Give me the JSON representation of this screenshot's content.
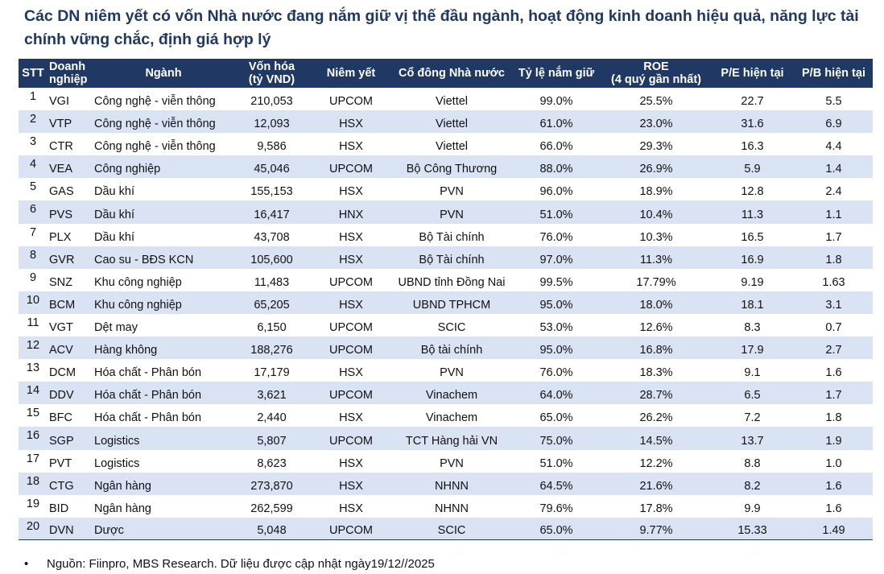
{
  "title": "Các DN niêm yết có vốn Nhà nước đang nắm giữ vị thế đầu ngành, hoạt động kinh doanh hiệu quả, năng lực tài chính vững chắc, định giá hợp lý",
  "table": {
    "headers": {
      "stt": "STT",
      "company_line1": "Doanh",
      "company_line2": "nghiệp",
      "industry": "Ngành",
      "capital_line1": "Vốn hóa",
      "capital_line2": "(tỷ VND)",
      "listing": "Niêm yết",
      "shareholder": "Cổ đông Nhà nước",
      "ownership": "Tỷ lệ nắm giữ",
      "roe_line1": "ROE",
      "roe_line2": "(4 quý gần nhất)",
      "pe": "P/E hiện tại",
      "pb": "P/B hiện tại"
    },
    "rows": [
      {
        "stt": "1",
        "company": "VGI",
        "industry": "Công nghệ - viễn thông",
        "capital": "210,053",
        "listing": "UPCOM",
        "shareholder": "Viettel",
        "ownership": "99.0%",
        "roe": "25.5%",
        "pe": "22.7",
        "pb": "5.5"
      },
      {
        "stt": "2",
        "company": "VTP",
        "industry": "Công nghệ - viễn thông",
        "capital": "12,093",
        "listing": "HSX",
        "shareholder": "Viettel",
        "ownership": "61.0%",
        "roe": "23.0%",
        "pe": "31.6",
        "pb": "6.9"
      },
      {
        "stt": "3",
        "company": "CTR",
        "industry": "Công nghệ - viễn thông",
        "capital": "9,586",
        "listing": "HSX",
        "shareholder": "Viettel",
        "ownership": "66.0%",
        "roe": "29.3%",
        "pe": "16.3",
        "pb": "4.4"
      },
      {
        "stt": "4",
        "company": "VEA",
        "industry": "Công nghiệp",
        "capital": "45,046",
        "listing": "UPCOM",
        "shareholder": "Bộ Công Thương",
        "ownership": "88.0%",
        "roe": "26.9%",
        "pe": "5.9",
        "pb": "1.4"
      },
      {
        "stt": "5",
        "company": "GAS",
        "industry": "Dầu khí",
        "capital": "155,153",
        "listing": "HSX",
        "shareholder": "PVN",
        "ownership": "96.0%",
        "roe": "18.9%",
        "pe": "12.8",
        "pb": "2.4"
      },
      {
        "stt": "6",
        "company": "PVS",
        "industry": "Dầu khí",
        "capital": "16,417",
        "listing": "HNX",
        "shareholder": "PVN",
        "ownership": "51.0%",
        "roe": "10.4%",
        "pe": "11.3",
        "pb": "1.1"
      },
      {
        "stt": "7",
        "company": "PLX",
        "industry": "Dầu khí",
        "capital": "43,708",
        "listing": "HSX",
        "shareholder": "Bộ Tài chính",
        "ownership": "76.0%",
        "roe": "10.3%",
        "pe": "16.5",
        "pb": "1.7"
      },
      {
        "stt": "8",
        "company": "GVR",
        "industry": "Cao su - BĐS KCN",
        "capital": "105,600",
        "listing": "HSX",
        "shareholder": "Bộ Tài chính",
        "ownership": "97.0%",
        "roe": "11.3%",
        "pe": "16.9",
        "pb": "1.8"
      },
      {
        "stt": "9",
        "company": "SNZ",
        "industry": "Khu công nghiệp",
        "capital": "11,483",
        "listing": "UPCOM",
        "shareholder": "UBND tỉnh Đồng Nai",
        "ownership": "99.5%",
        "roe": "17.79%",
        "pe": "9.19",
        "pb": "1.63"
      },
      {
        "stt": "10",
        "company": "BCM",
        "industry": "Khu công nghiệp",
        "capital": "65,205",
        "listing": "HSX",
        "shareholder": "UBND TPHCM",
        "ownership": "95.0%",
        "roe": "18.0%",
        "pe": "18.1",
        "pb": "3.1"
      },
      {
        "stt": "11",
        "company": "VGT",
        "industry": "Dệt may",
        "capital": "6,150",
        "listing": "UPCOM",
        "shareholder": "SCIC",
        "ownership": "53.0%",
        "roe": "12.6%",
        "pe": "8.3",
        "pb": "0.7"
      },
      {
        "stt": "12",
        "company": "ACV",
        "industry": "Hàng không",
        "capital": "188,276",
        "listing": "UPCOM",
        "shareholder": "Bộ tài chính",
        "ownership": "95.0%",
        "roe": "16.8%",
        "pe": "17.9",
        "pb": "2.7"
      },
      {
        "stt": "13",
        "company": "DCM",
        "industry": "Hóa chất - Phân bón",
        "capital": "17,179",
        "listing": "HSX",
        "shareholder": "PVN",
        "ownership": "76.0%",
        "roe": "18.3%",
        "pe": "9.1",
        "pb": "1.6"
      },
      {
        "stt": "14",
        "company": "DDV",
        "industry": "Hóa chất - Phân bón",
        "capital": "3,621",
        "listing": "UPCOM",
        "shareholder": "Vinachem",
        "ownership": "64.0%",
        "roe": "28.7%",
        "pe": "6.5",
        "pb": "1.7"
      },
      {
        "stt": "15",
        "company": "BFC",
        "industry": "Hóa chất - Phân bón",
        "capital": "2,440",
        "listing": "HSX",
        "shareholder": "Vinachem",
        "ownership": "65.0%",
        "roe": "26.2%",
        "pe": "7.2",
        "pb": "1.8"
      },
      {
        "stt": "16",
        "company": "SGP",
        "industry": "Logistics",
        "capital": "5,807",
        "listing": "UPCOM",
        "shareholder": "TCT Hàng hải VN",
        "ownership": "75.0%",
        "roe": "14.5%",
        "pe": "13.7",
        "pb": "1.9"
      },
      {
        "stt": "17",
        "company": "PVT",
        "industry": "Logistics",
        "capital": "8,623",
        "listing": "HSX",
        "shareholder": "PVN",
        "ownership": "51.0%",
        "roe": "12.2%",
        "pe": "8.8",
        "pb": "1.0"
      },
      {
        "stt": "18",
        "company": "CTG",
        "industry": "Ngân hàng",
        "capital": "273,870",
        "listing": "HSX",
        "shareholder": "NHNN",
        "ownership": "64.5%",
        "roe": "21.6%",
        "pe": "8.2",
        "pb": "1.6"
      },
      {
        "stt": "19",
        "company": "BID",
        "industry": "Ngân hàng",
        "capital": "262,599",
        "listing": "HSX",
        "shareholder": "NHNN",
        "ownership": "79.6%",
        "roe": "17.8%",
        "pe": "9.9",
        "pb": "1.6"
      },
      {
        "stt": "20",
        "company": "DVN",
        "industry": "Dược",
        "capital": "5,048",
        "listing": "UPCOM",
        "shareholder": "SCIC",
        "ownership": "65.0%",
        "roe": "9.77%",
        "pe": "15.33",
        "pb": "1.49"
      }
    ]
  },
  "note": {
    "bullet": "•",
    "text": "Nguồn: Fiinpro, MBS Research. Dữ liệu được cập nhật ngày19/12//2025"
  },
  "colors": {
    "header_bg": "#1f3864",
    "header_text": "#ffffff",
    "title_text": "#1f3864",
    "stripe_bg": "#dae3f3"
  }
}
